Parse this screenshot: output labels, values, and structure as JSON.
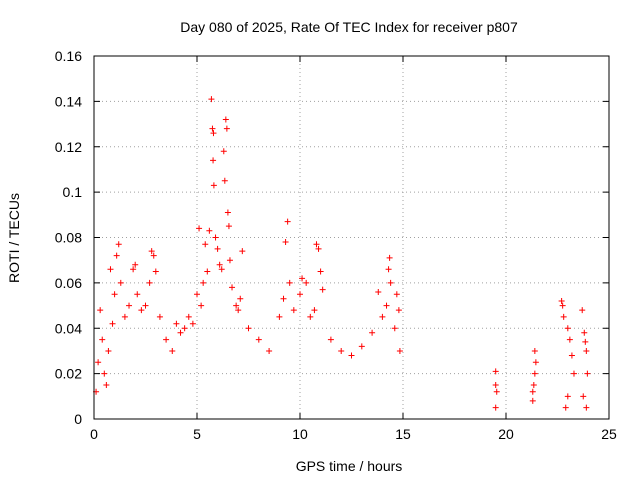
{
  "chart_data": {
    "type": "scatter",
    "title": "Day 080 of 2025, Rate Of TEC Index for receiver p807",
    "xlabel": "GPS time / hours",
    "ylabel": "ROTI / TECUs",
    "xlim": [
      0,
      25
    ],
    "ylim": [
      0,
      0.16
    ],
    "x_ticks": [
      0,
      5,
      10,
      15,
      20,
      25
    ],
    "x_tick_labels": [
      "0",
      "5",
      "10",
      "15",
      "20",
      "25"
    ],
    "y_ticks": [
      0,
      0.02,
      0.04,
      0.06,
      0.08,
      0.1,
      0.12,
      0.14,
      0.16
    ],
    "y_tick_labels": [
      "0",
      "0.02",
      "0.04",
      "0.06",
      "0.08",
      "0.1",
      "0.12",
      "0.14",
      "0.16"
    ],
    "grid": true,
    "marker": "+",
    "color": "#ff0000",
    "series": [
      {
        "points": [
          [
            0.1,
            0.012
          ],
          [
            0.2,
            0.025
          ],
          [
            0.3,
            0.048
          ],
          [
            0.4,
            0.035
          ],
          [
            0.5,
            0.02
          ],
          [
            0.6,
            0.015
          ],
          [
            0.7,
            0.03
          ],
          [
            0.8,
            0.066
          ],
          [
            0.9,
            0.042
          ],
          [
            1.0,
            0.055
          ],
          [
            1.1,
            0.072
          ],
          [
            1.2,
            0.077
          ],
          [
            1.3,
            0.06
          ],
          [
            1.5,
            0.045
          ],
          [
            1.7,
            0.05
          ],
          [
            1.9,
            0.066
          ],
          [
            2.0,
            0.068
          ],
          [
            2.1,
            0.055
          ],
          [
            2.3,
            0.048
          ],
          [
            2.5,
            0.05
          ],
          [
            2.7,
            0.06
          ],
          [
            2.8,
            0.074
          ],
          [
            2.9,
            0.072
          ],
          [
            3.0,
            0.065
          ],
          [
            3.2,
            0.045
          ],
          [
            3.5,
            0.035
          ],
          [
            3.8,
            0.03
          ],
          [
            4.0,
            0.042
          ],
          [
            4.2,
            0.038
          ],
          [
            4.4,
            0.04
          ],
          [
            4.6,
            0.045
          ],
          [
            4.8,
            0.042
          ],
          [
            5.0,
            0.055
          ],
          [
            5.1,
            0.084
          ],
          [
            5.2,
            0.05
          ],
          [
            5.3,
            0.06
          ],
          [
            5.4,
            0.077
          ],
          [
            5.5,
            0.065
          ],
          [
            5.6,
            0.083
          ],
          [
            5.7,
            0.141
          ],
          [
            5.75,
            0.128
          ],
          [
            5.8,
            0.126
          ],
          [
            5.78,
            0.114
          ],
          [
            5.82,
            0.103
          ],
          [
            5.9,
            0.08
          ],
          [
            6.0,
            0.075
          ],
          [
            6.1,
            0.068
          ],
          [
            6.2,
            0.066
          ],
          [
            6.3,
            0.118
          ],
          [
            6.35,
            0.105
          ],
          [
            6.4,
            0.132
          ],
          [
            6.45,
            0.128
          ],
          [
            6.5,
            0.091
          ],
          [
            6.55,
            0.085
          ],
          [
            6.6,
            0.07
          ],
          [
            6.7,
            0.058
          ],
          [
            6.9,
            0.05
          ],
          [
            7.0,
            0.048
          ],
          [
            7.1,
            0.053
          ],
          [
            7.2,
            0.074
          ],
          [
            7.5,
            0.04
          ],
          [
            8.0,
            0.035
          ],
          [
            8.5,
            0.03
          ],
          [
            9.0,
            0.045
          ],
          [
            9.2,
            0.053
          ],
          [
            9.3,
            0.078
          ],
          [
            9.4,
            0.087
          ],
          [
            9.5,
            0.06
          ],
          [
            9.7,
            0.048
          ],
          [
            10.0,
            0.055
          ],
          [
            10.1,
            0.062
          ],
          [
            10.3,
            0.06
          ],
          [
            10.5,
            0.045
          ],
          [
            10.7,
            0.048
          ],
          [
            10.8,
            0.077
          ],
          [
            10.9,
            0.075
          ],
          [
            11.0,
            0.065
          ],
          [
            11.1,
            0.057
          ],
          [
            11.5,
            0.035
          ],
          [
            12.0,
            0.03
          ],
          [
            12.5,
            0.028
          ],
          [
            13.0,
            0.032
          ],
          [
            13.5,
            0.038
          ],
          [
            13.8,
            0.056
          ],
          [
            14.0,
            0.045
          ],
          [
            14.2,
            0.05
          ],
          [
            14.3,
            0.066
          ],
          [
            14.35,
            0.071
          ],
          [
            14.4,
            0.06
          ],
          [
            14.6,
            0.04
          ],
          [
            14.7,
            0.055
          ],
          [
            14.8,
            0.048
          ],
          [
            14.85,
            0.03
          ],
          [
            19.5,
            0.021
          ],
          [
            19.5,
            0.015
          ],
          [
            19.55,
            0.012
          ],
          [
            19.5,
            0.005
          ],
          [
            21.3,
            0.012
          ],
          [
            21.35,
            0.015
          ],
          [
            21.4,
            0.02
          ],
          [
            21.45,
            0.025
          ],
          [
            21.3,
            0.008
          ],
          [
            21.4,
            0.03
          ],
          [
            22.7,
            0.052
          ],
          [
            22.75,
            0.05
          ],
          [
            22.8,
            0.045
          ],
          [
            23.0,
            0.04
          ],
          [
            23.1,
            0.035
          ],
          [
            23.2,
            0.028
          ],
          [
            23.3,
            0.02
          ],
          [
            23.0,
            0.01
          ],
          [
            22.9,
            0.005
          ],
          [
            23.7,
            0.048
          ],
          [
            23.8,
            0.038
          ],
          [
            23.85,
            0.034
          ],
          [
            23.9,
            0.03
          ],
          [
            23.95,
            0.02
          ],
          [
            23.75,
            0.01
          ],
          [
            23.9,
            0.005
          ]
        ]
      }
    ]
  }
}
